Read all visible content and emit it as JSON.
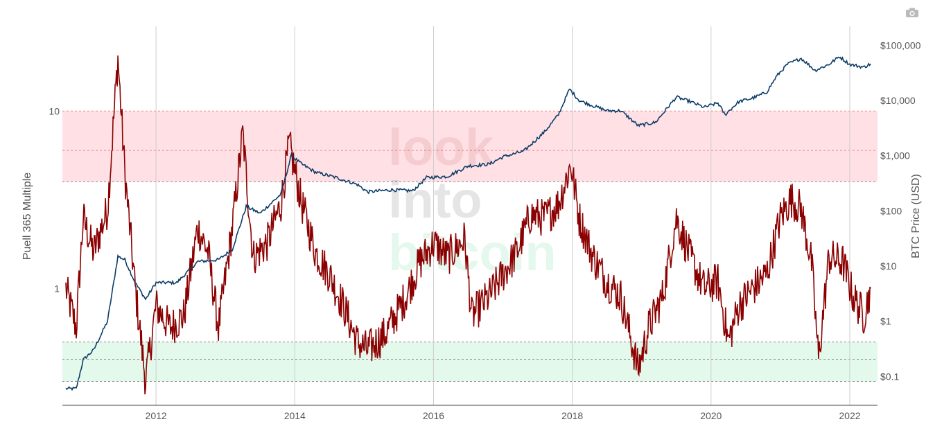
{
  "watermark": {
    "line1": "look",
    "line2": "into",
    "line3": "bitcoin"
  },
  "toolbar": {
    "icon": "camera-icon"
  },
  "colors": {
    "puell": "#8b0000",
    "price": "#0d3b66",
    "high_zone": "#ffd6dc",
    "low_zone": "#d9f7e6",
    "grid": "#cccccc"
  },
  "chart_data": {
    "type": "line",
    "title": "",
    "xlabel": "",
    "ylabel_left": "Puell 365 Multiple",
    "ylabel_right": "BTC Price (USD)",
    "x_range": [
      2010.65,
      2022.4
    ],
    "x_ticks": [
      {
        "value": 2012,
        "label": "2012"
      },
      {
        "value": 2014,
        "label": "2014"
      },
      {
        "value": 2016,
        "label": "2016"
      },
      {
        "value": 2018,
        "label": "2018"
      },
      {
        "value": 2020,
        "label": "2020"
      },
      {
        "value": 2022,
        "label": "2022"
      }
    ],
    "y_left": {
      "scale": "log",
      "range": [
        0.22,
        30
      ],
      "ticks": [
        {
          "value": 1,
          "label": "1"
        },
        {
          "value": 10,
          "label": "10"
        }
      ]
    },
    "y_right": {
      "scale": "log",
      "range": [
        0.03,
        220000
      ],
      "ticks": [
        {
          "value": 0.1,
          "label": "$0.1"
        },
        {
          "value": 1,
          "label": "$1"
        },
        {
          "value": 10,
          "label": "$10"
        },
        {
          "value": 100,
          "label": "$100"
        },
        {
          "value": 1000,
          "label": "$1,000"
        },
        {
          "value": 10000,
          "label": "$10,000"
        },
        {
          "value": 100000,
          "label": "$100,000"
        }
      ]
    },
    "bands": [
      {
        "name": "high",
        "from": 4,
        "to": 10,
        "mid": 6
      },
      {
        "name": "low",
        "from": 0.3,
        "to": 0.5,
        "mid": 0.4
      }
    ],
    "series": [
      {
        "axis": "left",
        "x": [
          2010.7,
          2010.85,
          2010.95,
          2011.1,
          2011.3,
          2011.45,
          2011.55,
          2011.7,
          2011.85,
          2012.0,
          2012.2,
          2012.4,
          2012.6,
          2012.75,
          2012.9,
          2013.1,
          2013.25,
          2013.4,
          2013.6,
          2013.8,
          2013.92,
          2014.1,
          2014.3,
          2014.5,
          2014.7,
          2014.9,
          2015.05,
          2015.3,
          2015.6,
          2015.8,
          2016.0,
          2016.2,
          2016.45,
          2016.55,
          2016.8,
          2017.0,
          2017.2,
          2017.4,
          2017.6,
          2017.8,
          2017.98,
          2018.1,
          2018.3,
          2018.5,
          2018.7,
          2018.95,
          2019.1,
          2019.3,
          2019.5,
          2019.7,
          2019.9,
          2020.1,
          2020.25,
          2020.4,
          2020.6,
          2020.8,
          2021.0,
          2021.15,
          2021.3,
          2021.45,
          2021.55,
          2021.7,
          2021.9,
          2022.05,
          2022.2,
          2022.3
        ],
        "values": [
          1.0,
          0.6,
          2.5,
          1.6,
          2.8,
          20.0,
          4.5,
          1.0,
          0.3,
          0.8,
          0.6,
          0.7,
          2.2,
          1.6,
          0.6,
          2.2,
          7.5,
          1.5,
          1.8,
          3.0,
          6.5,
          3.0,
          1.6,
          1.2,
          0.8,
          0.5,
          0.45,
          0.55,
          0.9,
          1.4,
          1.8,
          1.5,
          1.9,
          0.7,
          0.9,
          1.2,
          1.6,
          2.6,
          2.5,
          3.0,
          5.0,
          2.5,
          1.5,
          1.1,
          0.9,
          0.35,
          0.6,
          0.9,
          2.5,
          1.5,
          1.0,
          1.1,
          0.5,
          0.8,
          1.0,
          1.2,
          2.5,
          3.2,
          2.8,
          1.4,
          0.4,
          1.5,
          1.4,
          0.9,
          0.7,
          1.0
        ]
      },
      {
        "axis": "right",
        "x": [
          2010.7,
          2010.85,
          2010.95,
          2011.1,
          2011.3,
          2011.45,
          2011.55,
          2011.7,
          2011.85,
          2012.0,
          2012.3,
          2012.6,
          2012.9,
          2013.1,
          2013.3,
          2013.5,
          2013.8,
          2013.95,
          2014.1,
          2014.3,
          2014.6,
          2014.9,
          2015.05,
          2015.4,
          2015.7,
          2015.9,
          2016.2,
          2016.5,
          2016.8,
          2017.0,
          2017.3,
          2017.6,
          2017.8,
          2017.96,
          2018.1,
          2018.3,
          2018.5,
          2018.7,
          2018.95,
          2019.2,
          2019.5,
          2019.7,
          2019.9,
          2020.1,
          2020.2,
          2020.4,
          2020.6,
          2020.8,
          2020.95,
          2021.1,
          2021.3,
          2021.5,
          2021.7,
          2021.85,
          2022.0,
          2022.2,
          2022.3
        ],
        "values": [
          0.06,
          0.06,
          0.2,
          0.3,
          1.0,
          15.0,
          13.0,
          5.0,
          2.5,
          5.0,
          5.0,
          12.0,
          13.0,
          20.0,
          120.0,
          90.0,
          200.0,
          1000.0,
          700.0,
          500.0,
          400.0,
          300.0,
          220.0,
          240.0,
          230.0,
          400.0,
          420.0,
          650.0,
          700.0,
          950.0,
          1200.0,
          2700.0,
          5500.0,
          16000.0,
          10000.0,
          8000.0,
          6500.0,
          6500.0,
          3500.0,
          4000.0,
          11500.0,
          9500.0,
          7500.0,
          9000.0,
          5500.0,
          9500.0,
          11000.0,
          14000.0,
          28000.0,
          45000.0,
          58000.0,
          35000.0,
          45000.0,
          62000.0,
          45000.0,
          40000.0,
          46000.0
        ]
      }
    ]
  }
}
